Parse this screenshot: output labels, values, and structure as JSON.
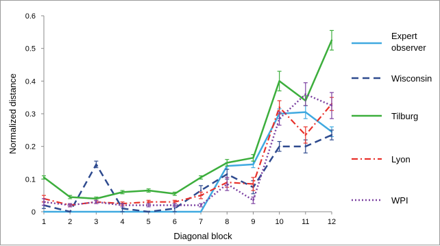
{
  "chart_data": {
    "type": "line",
    "xlabel": "Diagonal block",
    "ylabel": "Normalized distance",
    "x": [
      1,
      2,
      3,
      4,
      5,
      6,
      7,
      8,
      9,
      10,
      11,
      12
    ],
    "xlim": [
      1,
      12
    ],
    "ylim": [
      0,
      0.6
    ],
    "yticks": [
      "0",
      "0.1",
      "0.2",
      "0.3",
      "0.4",
      "0.5",
      "0.6"
    ],
    "xticks": [
      "1",
      "2",
      "3",
      "4",
      "5",
      "6",
      "7",
      "8",
      "9",
      "10",
      "11",
      "12"
    ],
    "grid": false,
    "legend_position": "right",
    "series": [
      {
        "name": "Expert observer",
        "color": "#3fa9e0",
        "dash": "solid",
        "values": [
          0,
          0,
          0,
          0,
          0,
          0,
          0,
          0.14,
          0.145,
          0.3,
          0.305,
          0.245
        ],
        "errors": [
          0,
          0,
          0,
          0,
          0,
          0,
          0,
          0.01,
          0.01,
          0.015,
          0.02,
          0.015
        ]
      },
      {
        "name": "Wisconsin",
        "color": "#2e4a8e",
        "dash": "longdash",
        "values": [
          0.02,
          0,
          0.145,
          0.01,
          0,
          0.01,
          0.065,
          0.115,
          0.075,
          0.2,
          0.2,
          0.235
        ],
        "errors": [
          0.01,
          0,
          0.01,
          0.01,
          0,
          0.01,
          0.015,
          0.015,
          0.02,
          0.015,
          0.02,
          0.015
        ]
      },
      {
        "name": "Tilburg",
        "color": "#3cae3c",
        "dash": "solid",
        "values": [
          0.105,
          0.045,
          0.04,
          0.06,
          0.065,
          0.055,
          0.105,
          0.15,
          0.165,
          0.4,
          0.34,
          0.525
        ],
        "errors": [
          0.005,
          0.005,
          0.005,
          0.005,
          0.005,
          0.005,
          0.005,
          0.01,
          0.01,
          0.03,
          0.015,
          0.03
        ]
      },
      {
        "name": "Lyon",
        "color": "#e8312a",
        "dash": "dashdot",
        "values": [
          0.04,
          0.02,
          0.03,
          0.025,
          0.03,
          0.03,
          0.05,
          0.09,
          0.085,
          0.32,
          0.235,
          0.33
        ],
        "errors": [
          0.01,
          0.005,
          0.005,
          0.005,
          0.005,
          0.005,
          0.01,
          0.015,
          0.02,
          0.02,
          0.025,
          0.02
        ]
      },
      {
        "name": "WPI",
        "color": "#7a3fa0",
        "dash": "dotted",
        "values": [
          0.03,
          0.02,
          0.03,
          0.02,
          0.02,
          0.02,
          0.02,
          0.085,
          0.035,
          0.285,
          0.36,
          0.325
        ],
        "errors": [
          0.01,
          0.005,
          0.005,
          0.005,
          0.005,
          0.005,
          0.005,
          0.02,
          0.01,
          0.02,
          0.035,
          0.04
        ]
      }
    ]
  }
}
